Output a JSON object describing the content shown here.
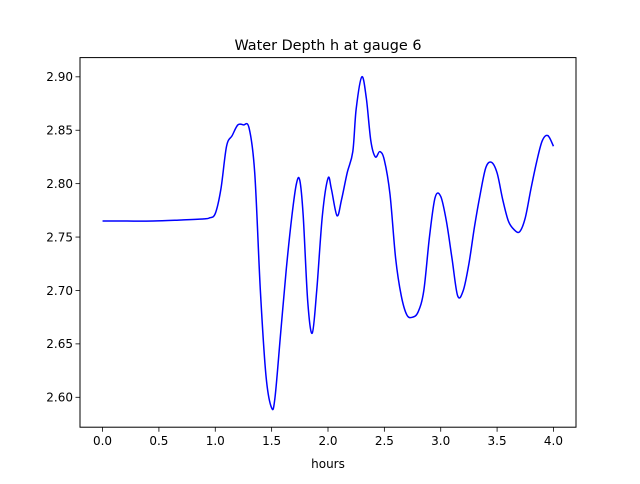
{
  "chart_data": {
    "type": "line",
    "title": "Water Depth h at gauge 6",
    "xlabel": "hours",
    "ylabel": "",
    "xlim": [
      -0.2,
      4.2
    ],
    "ylim": [
      2.572,
      2.918
    ],
    "xticks": [
      0.0,
      0.5,
      1.0,
      1.5,
      2.0,
      2.5,
      3.0,
      3.5,
      4.0
    ],
    "xtick_labels": [
      "0.0",
      "0.5",
      "1.0",
      "1.5",
      "2.0",
      "2.5",
      "3.0",
      "3.5",
      "4.0"
    ],
    "yticks": [
      2.6,
      2.65,
      2.7,
      2.75,
      2.8,
      2.85,
      2.9
    ],
    "ytick_labels": [
      "2.60",
      "2.65",
      "2.70",
      "2.75",
      "2.80",
      "2.85",
      "2.90"
    ],
    "grid": false,
    "series": [
      {
        "color": "#0000ff",
        "x": [
          0.0,
          0.2,
          0.45,
          0.7,
          0.9,
          0.95,
          1.0,
          1.05,
          1.1,
          1.15,
          1.2,
          1.25,
          1.3,
          1.35,
          1.4,
          1.45,
          1.5,
          1.53,
          1.58,
          1.63,
          1.68,
          1.72,
          1.75,
          1.78,
          1.82,
          1.86,
          1.9,
          1.95,
          2.0,
          2.03,
          2.08,
          2.12,
          2.17,
          2.22,
          2.25,
          2.3,
          2.34,
          2.38,
          2.42,
          2.46,
          2.5,
          2.55,
          2.6,
          2.65,
          2.7,
          2.75,
          2.8,
          2.85,
          2.9,
          2.95,
          3.0,
          3.05,
          3.1,
          3.15,
          3.2,
          3.25,
          3.3,
          3.35,
          3.4,
          3.45,
          3.5,
          3.55,
          3.6,
          3.65,
          3.7,
          3.75,
          3.8,
          3.85,
          3.9,
          3.95,
          4.0
        ],
        "y": [
          2.765,
          2.765,
          2.765,
          2.766,
          2.767,
          2.768,
          2.772,
          2.795,
          2.835,
          2.845,
          2.855,
          2.855,
          2.852,
          2.81,
          2.7,
          2.62,
          2.59,
          2.6,
          2.66,
          2.72,
          2.77,
          2.8,
          2.803,
          2.77,
          2.69,
          2.66,
          2.7,
          2.77,
          2.805,
          2.795,
          2.77,
          2.785,
          2.81,
          2.83,
          2.87,
          2.9,
          2.88,
          2.84,
          2.825,
          2.83,
          2.822,
          2.79,
          2.73,
          2.695,
          2.677,
          2.675,
          2.68,
          2.7,
          2.75,
          2.787,
          2.788,
          2.765,
          2.73,
          2.695,
          2.7,
          2.725,
          2.76,
          2.79,
          2.815,
          2.82,
          2.81,
          2.785,
          2.765,
          2.757,
          2.755,
          2.768,
          2.795,
          2.82,
          2.84,
          2.845,
          2.835
        ]
      }
    ]
  }
}
